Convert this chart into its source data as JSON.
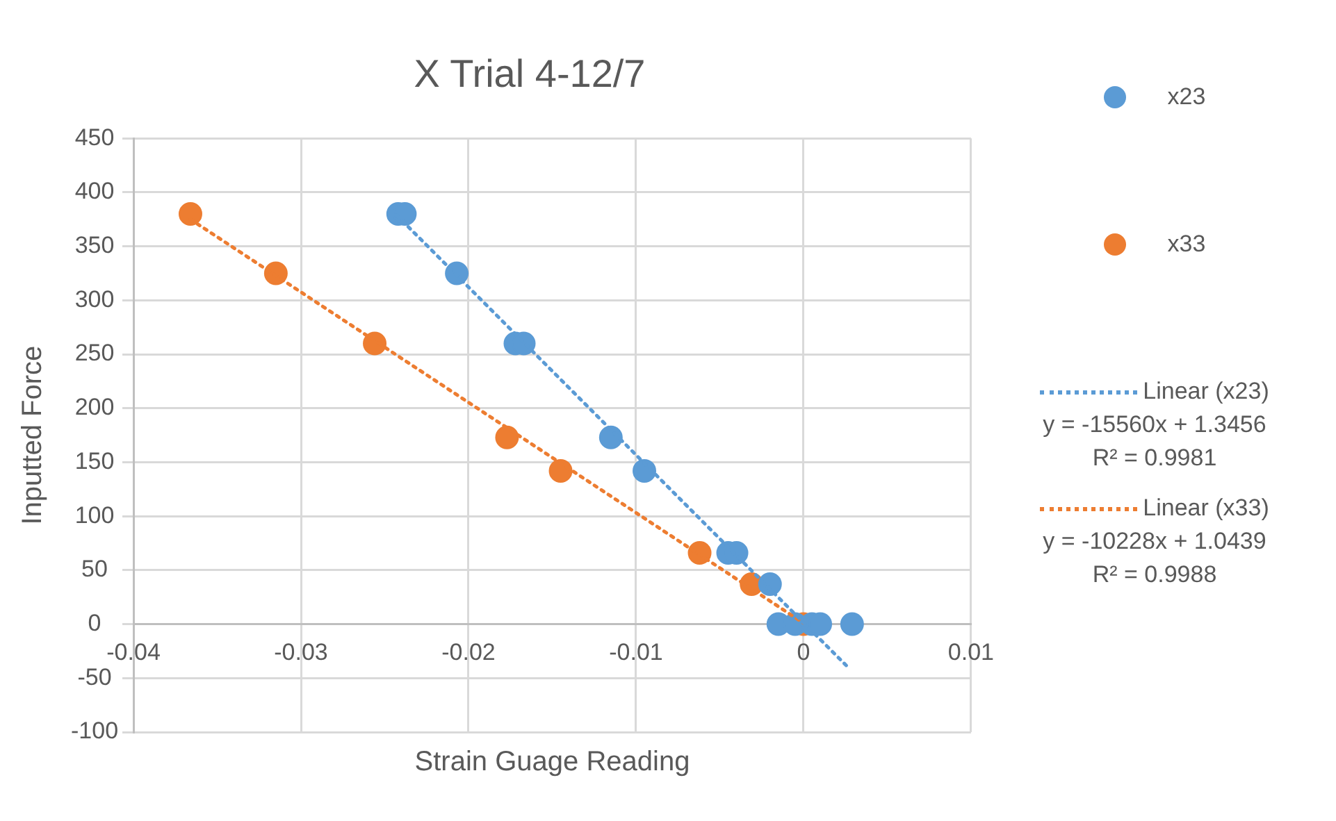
{
  "chart_data": {
    "type": "scatter",
    "title": "X Trial 4-12/7",
    "xlabel": "Strain Guage Reading",
    "ylabel": "Inputted Force",
    "xlim": [
      -0.04,
      0.01
    ],
    "xticks": [
      -0.04,
      -0.03,
      -0.02,
      -0.01,
      0,
      0.01
    ],
    "ylim": [
      -100,
      450
    ],
    "yticks": [
      -100,
      -50,
      0,
      50,
      100,
      150,
      200,
      250,
      300,
      350,
      400,
      450
    ],
    "grid": true,
    "legend": "right",
    "marker": "circle",
    "series": [
      {
        "name": "x23",
        "color": "#5b9bd5",
        "x": [
          -0.0242,
          -0.0238,
          -0.0207,
          -0.0172,
          -0.0167,
          -0.0115,
          -0.0095,
          -0.0045,
          -0.004,
          -0.002,
          -0.0015,
          -0.0005,
          0.0005,
          0.001,
          0.0029
        ],
        "values": [
          380,
          380,
          325,
          260,
          260,
          173,
          142,
          66,
          66,
          37,
          0,
          0,
          0,
          0,
          0
        ]
      },
      {
        "name": "x33",
        "color": "#ed7d31",
        "x": [
          -0.0366,
          -0.0315,
          -0.0256,
          -0.0177,
          -0.0145,
          -0.0062,
          -0.0031,
          0.0
        ],
        "values": [
          380,
          325,
          260,
          173,
          142,
          66,
          37,
          0
        ]
      },
      {
        "name": "Linear (x23)",
        "type": "line",
        "line_style": "dotted",
        "marker": "none",
        "color": "#5b9bd5",
        "x": [
          -0.0243,
          0.0026
        ],
        "values": [
          379,
          -39
        ]
      },
      {
        "name": "Linear (x33)",
        "type": "line",
        "line_style": "dotted",
        "marker": "none",
        "color": "#ed7d31",
        "x": [
          -0.0366,
          0.0
        ],
        "values": [
          375,
          1
        ]
      }
    ],
    "annotations": [
      "y = -15560x + 1.3456\nR² = 0.9981",
      "y = -10228x + 1.0439\nR² = 0.9988"
    ]
  }
}
